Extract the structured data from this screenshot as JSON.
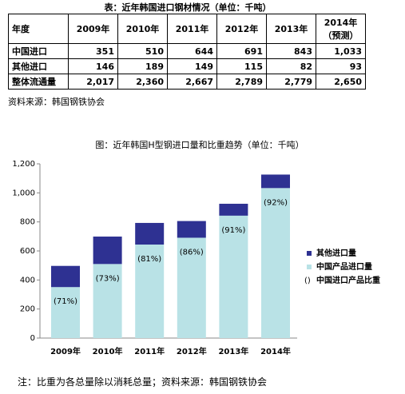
{
  "table_title": "表：近年韩国进口钢材情况（单位：千吨）",
  "table": {
    "header": [
      "年度",
      "2009年",
      "2010年",
      "2011年",
      "2012年",
      "2013年",
      "2014年\n（预测）"
    ],
    "rows": [
      [
        "中国进口",
        "351",
        "510",
        "644",
        "691",
        "843",
        "1,033"
      ],
      [
        "其他进口",
        "146",
        "189",
        "149",
        "115",
        "82",
        "93"
      ],
      [
        "整体流通量",
        "2,017",
        "2,360",
        "2,667",
        "2,789",
        "2,779",
        "2,650"
      ]
    ]
  },
  "source": "资料来源：韩国钢铁协会",
  "chart_data": {
    "type": "stacked-bar",
    "title": "图：近年韩国H型钢进口量和比重趋势（单位：千吨）",
    "categories": [
      "2009年",
      "2010年",
      "2011年",
      "2012年",
      "2013年",
      "2014年"
    ],
    "series": [
      {
        "name": "其他进口量",
        "color": "#2e3192",
        "values": [
          146,
          189,
          149,
          115,
          82,
          93
        ]
      },
      {
        "name": "中国产品进口量",
        "color": "#b9e2e6",
        "values": [
          351,
          510,
          644,
          691,
          843,
          1033
        ]
      },
      {
        "name": "中国进口产品比重",
        "marker": "()",
        "values": [
          71,
          73,
          81,
          86,
          91,
          92
        ],
        "value_labels": [
          "(71%)",
          "(73%)",
          "(81%)",
          "(86%)",
          "(91%)",
          "(92%)"
        ]
      }
    ],
    "ylim": [
      0,
      1200
    ],
    "yticks": [
      0,
      200,
      400,
      600,
      800,
      {
        "value": 1000,
        "label": "1,000"
      },
      {
        "value": 1200,
        "label": "1,200"
      }
    ],
    "grid": false,
    "legend": "right"
  },
  "note": "注：比重为各总量除以消耗总量；资料来源：韩国钢铁协会"
}
